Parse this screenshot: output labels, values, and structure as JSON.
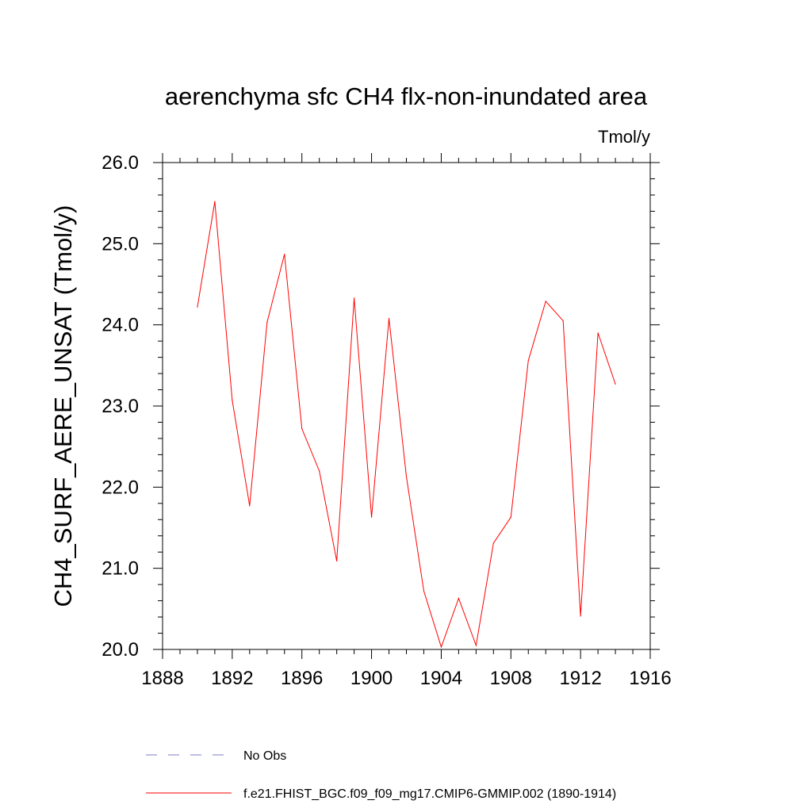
{
  "chart_data": {
    "type": "line",
    "title": "aerenchyma sfc CH4 flx-non-inundated area",
    "units_label": "Tmol/y",
    "xlabel": "",
    "ylabel": "CH4_SURF_AERE_UNSAT  (Tmol/y)",
    "xlim": [
      1888,
      1916
    ],
    "ylim": [
      20.0,
      26.0
    ],
    "xticks": [
      1888,
      1892,
      1896,
      1900,
      1904,
      1908,
      1912,
      1916
    ],
    "xtick_labels": [
      "1888",
      "1892",
      "1896",
      "1900",
      "1904",
      "1908",
      "1912",
      "1916"
    ],
    "yticks": [
      20,
      21,
      22,
      23,
      24,
      25,
      26
    ],
    "ytick_labels": [
      "20.0",
      "21.0",
      "22.0",
      "23.0",
      "24.0",
      "25.0",
      "26.0"
    ],
    "x_minor_step": 1,
    "y_minor_step": 0.2,
    "grid": false,
    "legend_position": "bottom",
    "series": [
      {
        "name": "f.e21.FHIST_BGC.f09_f09_mg17.CMIP6-GMMIP.002 (1890-1914)",
        "color": "#ff0000",
        "style": "solid",
        "x": [
          1890,
          1891,
          1892,
          1893,
          1894,
          1895,
          1896,
          1897,
          1898,
          1899,
          1900,
          1901,
          1902,
          1903,
          1904,
          1905,
          1906,
          1907,
          1908,
          1909,
          1910,
          1911,
          1912,
          1913,
          1914
        ],
        "y": [
          24.22,
          25.52,
          23.07,
          21.77,
          24.03,
          24.87,
          22.72,
          22.2,
          21.09,
          24.33,
          21.63,
          24.08,
          22.13,
          20.72,
          20.03,
          20.63,
          20.05,
          21.31,
          21.63,
          23.56,
          24.29,
          24.05,
          20.41,
          23.9,
          23.27
        ]
      }
    ],
    "legend": [
      {
        "label": "No Obs",
        "color": "#7b7bc8",
        "style": "dashed"
      },
      {
        "label": "f.e21.FHIST_BGC.f09_f09_mg17.CMIP6-GMMIP.002 (1890-1914)",
        "color": "#ff0000",
        "style": "solid"
      }
    ]
  }
}
